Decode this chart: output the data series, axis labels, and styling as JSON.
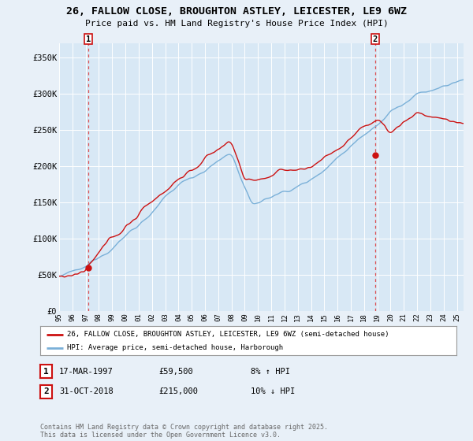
{
  "title": "26, FALLOW CLOSE, BROUGHTON ASTLEY, LEICESTER, LE9 6WZ",
  "subtitle": "Price paid vs. HM Land Registry's House Price Index (HPI)",
  "bg_color": "#e8f0f8",
  "plot_bg_color": "#d8e8f5",
  "ylim": [
    0,
    370000
  ],
  "yticks": [
    0,
    50000,
    100000,
    150000,
    200000,
    250000,
    300000,
    350000
  ],
  "ytick_labels": [
    "£0",
    "£50K",
    "£100K",
    "£150K",
    "£200K",
    "£250K",
    "£300K",
    "£350K"
  ],
  "xlim_start": 1995.0,
  "xlim_end": 2025.5,
  "annotation1": {
    "label": "1",
    "date_year": 1997.21,
    "price": 59500,
    "text": "17-MAR-1997",
    "price_text": "£59,500",
    "hpi_text": "8% ↑ HPI"
  },
  "annotation2": {
    "label": "2",
    "date_year": 2018.83,
    "price": 215000,
    "text": "31-OCT-2018",
    "price_text": "£215,000",
    "hpi_text": "10% ↓ HPI"
  },
  "line1_color": "#cc1111",
  "line2_color": "#7ab0d8",
  "legend1": "26, FALLOW CLOSE, BROUGHTON ASTLEY, LEICESTER, LE9 6WZ (semi-detached house)",
  "legend2": "HPI: Average price, semi-detached house, Harborough",
  "footer": "Contains HM Land Registry data © Crown copyright and database right 2025.\nThis data is licensed under the Open Government Licence v3.0.",
  "xtick_years": [
    1995,
    1996,
    1997,
    1998,
    1999,
    2000,
    2001,
    2002,
    2003,
    2004,
    2005,
    2006,
    2007,
    2008,
    2009,
    2010,
    2011,
    2012,
    2013,
    2014,
    2015,
    2016,
    2017,
    2018,
    2019,
    2020,
    2021,
    2022,
    2023,
    2024,
    2025
  ]
}
